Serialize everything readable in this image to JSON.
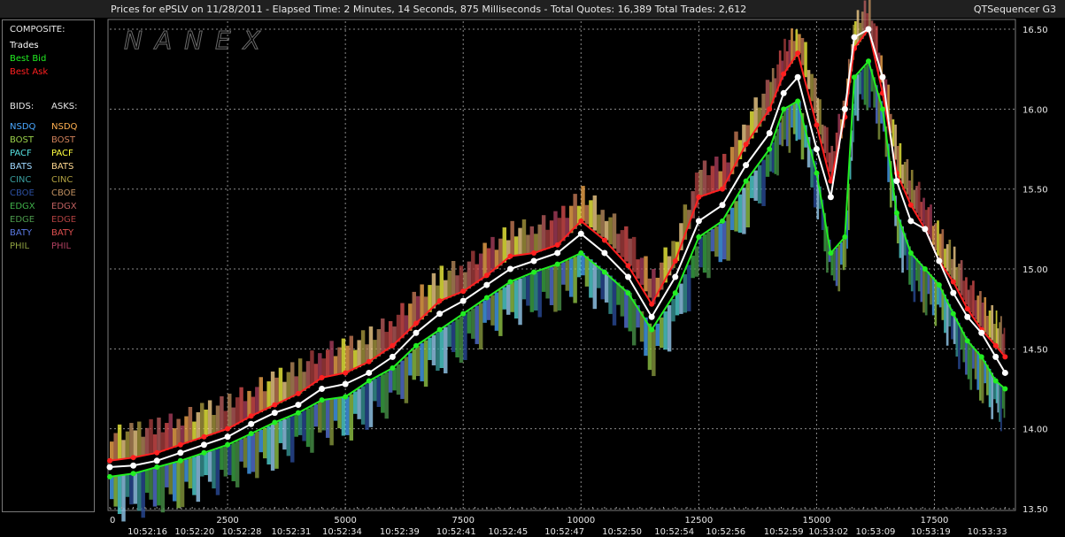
{
  "header": {
    "title": "Prices for  ePSLV  on  11/28/2011  -  Elapsed Time: 2 Minutes, 14 Seconds, 875 Milliseconds  -  Total Quotes: 16,389  Total Trades: 2,612",
    "app_name": "QTSequencer G3"
  },
  "watermark": "NANEX",
  "legend": {
    "composite_title": "COMPOSITE:",
    "composite_items": [
      {
        "label": "Trades",
        "color": "#ffffff"
      },
      {
        "label": "Best Bid",
        "color": "#22ee22"
      },
      {
        "label": "Best Ask",
        "color": "#ff2020"
      }
    ],
    "bids_title": "BIDS:",
    "asks_title": "ASKS:",
    "bids": [
      {
        "label": "NSDQ",
        "color": "#4aa8ff"
      },
      {
        "label": "BOST",
        "color": "#9ad04a"
      },
      {
        "label": "PACF",
        "color": "#55e0e0"
      },
      {
        "label": "BATS",
        "color": "#9fd8ff"
      },
      {
        "label": "CINC",
        "color": "#3a9e9e"
      },
      {
        "label": "CBOE",
        "color": "#2c4fa0"
      },
      {
        "label": "EDGX",
        "color": "#3fb04a"
      },
      {
        "label": "EDGE",
        "color": "#4c9a4c"
      },
      {
        "label": "BATY",
        "color": "#5a78e0"
      },
      {
        "label": "PHIL",
        "color": "#8ea040"
      }
    ],
    "asks": [
      {
        "label": "NSDQ",
        "color": "#ffb050"
      },
      {
        "label": "BOST",
        "color": "#d0805a"
      },
      {
        "label": "PACF",
        "color": "#ffff40"
      },
      {
        "label": "BATS",
        "color": "#ffd890"
      },
      {
        "label": "CINC",
        "color": "#b0a040"
      },
      {
        "label": "CBOE",
        "color": "#c09060"
      },
      {
        "label": "EDGX",
        "color": "#c06060"
      },
      {
        "label": "EDGE",
        "color": "#b04040"
      },
      {
        "label": "BATY",
        "color": "#e05050"
      },
      {
        "label": "PHIL",
        "color": "#b04060"
      }
    ]
  },
  "chart_data": {
    "type": "line",
    "title": "Prices for  ePSLV  on  11/28/2011",
    "xlabel": "",
    "ylabel": "",
    "xlim": [
      0,
      19200
    ],
    "ylim": [
      13.5,
      16.55
    ],
    "grid": true,
    "x_ticks": [
      "0",
      "2500",
      "5000",
      "7500",
      "10000",
      "12500",
      "15000",
      "17500"
    ],
    "x_tick_values": [
      0,
      2500,
      5000,
      7500,
      10000,
      12500,
      15000,
      17500
    ],
    "time_labels": [
      "10:52:16",
      "10:52:20",
      "10:52:28",
      "10:52:31",
      "10:52:34",
      "10:52:39",
      "10:52:41",
      "10:52:45",
      "10:52:47",
      "10:52:50",
      "10:52:54",
      "10:52:56",
      "10:52:59",
      "10:53:02",
      "10:53:09",
      "10:53:19",
      "10:53:33"
    ],
    "time_label_values": [
      800,
      1800,
      2800,
      3850,
      4930,
      6150,
      7350,
      8450,
      9650,
      10870,
      11980,
      13070,
      14300,
      15250,
      16250,
      17420,
      18620
    ],
    "y_ticks": [
      "13.50",
      "14.00",
      "14.50",
      "15.00",
      "15.50",
      "16.00",
      "16.50"
    ],
    "y_tick_values": [
      13.5,
      14.0,
      14.5,
      15.0,
      15.5,
      16.0,
      16.5
    ],
    "series": [
      {
        "name": "Trades",
        "color": "#ffffff",
        "x": [
          0,
          500,
          1000,
          1500,
          2000,
          2500,
          3000,
          3500,
          4000,
          4500,
          5000,
          5500,
          6000,
          6500,
          7000,
          7500,
          8000,
          8500,
          9000,
          9500,
          10000,
          10500,
          11000,
          11500,
          12000,
          12500,
          13000,
          13500,
          14000,
          14300,
          14600,
          15000,
          15300,
          15600,
          15800,
          16100,
          16400,
          16700,
          17000,
          17300,
          17600,
          17900,
          18200,
          18500,
          18800,
          19000
        ],
        "y": [
          13.76,
          13.77,
          13.8,
          13.85,
          13.9,
          13.95,
          14.03,
          14.1,
          14.15,
          14.25,
          14.28,
          14.35,
          14.45,
          14.6,
          14.72,
          14.8,
          14.9,
          15.0,
          15.05,
          15.1,
          15.22,
          15.1,
          14.95,
          14.7,
          14.95,
          15.3,
          15.4,
          15.65,
          15.85,
          16.1,
          16.2,
          15.75,
          15.45,
          16.0,
          16.45,
          16.5,
          16.2,
          15.55,
          15.3,
          15.25,
          15.05,
          14.85,
          14.7,
          14.6,
          14.45,
          14.35
        ]
      },
      {
        "name": "Best Bid",
        "color": "#22ee22",
        "x": [
          0,
          500,
          1000,
          1500,
          2000,
          2500,
          3000,
          3500,
          4000,
          4500,
          5000,
          5500,
          6000,
          6500,
          7000,
          7500,
          8000,
          8500,
          9000,
          9500,
          10000,
          10500,
          11000,
          11500,
          12000,
          12500,
          13000,
          13500,
          14000,
          14300,
          14600,
          15000,
          15300,
          15600,
          15800,
          16100,
          16400,
          16700,
          17000,
          17300,
          17600,
          17900,
          18200,
          18500,
          18800,
          19000
        ],
        "y": [
          13.7,
          13.72,
          13.76,
          13.8,
          13.85,
          13.9,
          13.97,
          14.04,
          14.1,
          14.18,
          14.2,
          14.3,
          14.38,
          14.52,
          14.62,
          14.72,
          14.82,
          14.92,
          14.98,
          15.03,
          15.1,
          14.98,
          14.85,
          14.62,
          14.85,
          15.2,
          15.3,
          15.55,
          15.75,
          16.0,
          16.05,
          15.6,
          15.1,
          15.2,
          16.2,
          16.3,
          16.0,
          15.35,
          15.1,
          15.0,
          14.9,
          14.72,
          14.55,
          14.45,
          14.3,
          14.25
        ]
      },
      {
        "name": "Best Ask",
        "color": "#ff2020",
        "x": [
          0,
          500,
          1000,
          1500,
          2000,
          2500,
          3000,
          3500,
          4000,
          4500,
          5000,
          5500,
          6000,
          6500,
          7000,
          7500,
          8000,
          8500,
          9000,
          9500,
          10000,
          10500,
          11000,
          11500,
          12000,
          12500,
          13000,
          13500,
          14000,
          14300,
          14600,
          15000,
          15300,
          15600,
          15800,
          16100,
          16400,
          16700,
          17000,
          17300,
          17600,
          17900,
          18200,
          18500,
          18800,
          19000
        ],
        "y": [
          13.8,
          13.82,
          13.85,
          13.9,
          13.95,
          14.0,
          14.08,
          14.15,
          14.22,
          14.32,
          14.35,
          14.42,
          14.52,
          14.66,
          14.8,
          14.86,
          14.96,
          15.08,
          15.1,
          15.15,
          15.3,
          15.18,
          15.02,
          14.78,
          15.05,
          15.45,
          15.5,
          15.78,
          16.0,
          16.22,
          16.35,
          15.9,
          15.55,
          15.95,
          16.38,
          16.5,
          16.1,
          15.6,
          15.4,
          15.25,
          15.05,
          14.92,
          14.75,
          14.62,
          14.52,
          14.45
        ]
      }
    ]
  }
}
